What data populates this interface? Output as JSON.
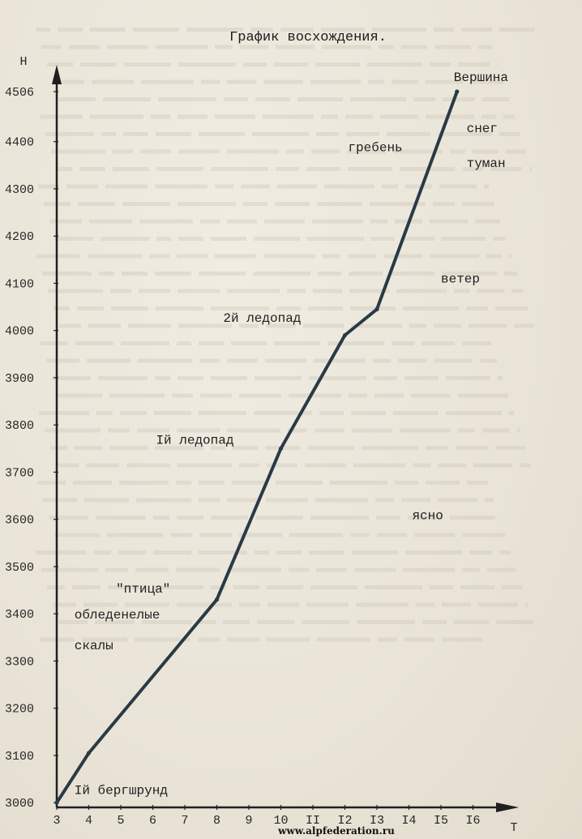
{
  "chart_data": {
    "type": "line",
    "title": "График восхождения.",
    "ylabel": "Н",
    "xlabel": "Т",
    "x_ticks": [
      "3",
      "4",
      "5",
      "6",
      "7",
      "8",
      "9",
      "10",
      "II",
      "I2",
      "I3",
      "I4",
      "I5",
      "I6"
    ],
    "y_ticks": [
      "3000",
      "3100",
      "3200",
      "3300",
      "3400",
      "3500",
      "3600",
      "3700",
      "3800",
      "3900",
      "4000",
      "4100",
      "4200",
      "4300",
      "4400",
      "4506"
    ],
    "xlim": [
      3,
      17
    ],
    "ylim": [
      2990,
      4560
    ],
    "grid": false,
    "series": [
      {
        "x": [
          3,
          4,
          8,
          10,
          12,
          13,
          15.5
        ],
        "y": [
          3000,
          3105,
          3430,
          3750,
          3990,
          4045,
          4506
        ]
      }
    ],
    "annotations": [
      {
        "text": "Вершина",
        "x": 15.4,
        "y": 4528
      },
      {
        "text": "снег",
        "x": 15.8,
        "y": 4420
      },
      {
        "text": "туман",
        "x": 15.8,
        "y": 4346
      },
      {
        "text": "гребень",
        "x": 12.1,
        "y": 4380
      },
      {
        "text": "ветер",
        "x": 15.0,
        "y": 4102
      },
      {
        "text": "2й ледопад",
        "x": 8.2,
        "y": 4018
      },
      {
        "text": "Iй ледопад",
        "x": 6.1,
        "y": 3760
      },
      {
        "text": "ясно",
        "x": 14.1,
        "y": 3600
      },
      {
        "text": "\"птица\"",
        "x": 4.85,
        "y": 3445
      },
      {
        "text": "обледенелые",
        "x": 3.55,
        "y": 3390
      },
      {
        "text": "скалы",
        "x": 3.55,
        "y": 3325
      },
      {
        "text": "Iй бергшрунд",
        "x": 3.55,
        "y": 3018
      }
    ]
  },
  "watermark": "www.alpfederation.ru",
  "colors": {
    "line": "#2a3a45",
    "ink": "#1f1f1f",
    "paper": "#ebe6da",
    "ghost_text": "#c9c3b4"
  }
}
